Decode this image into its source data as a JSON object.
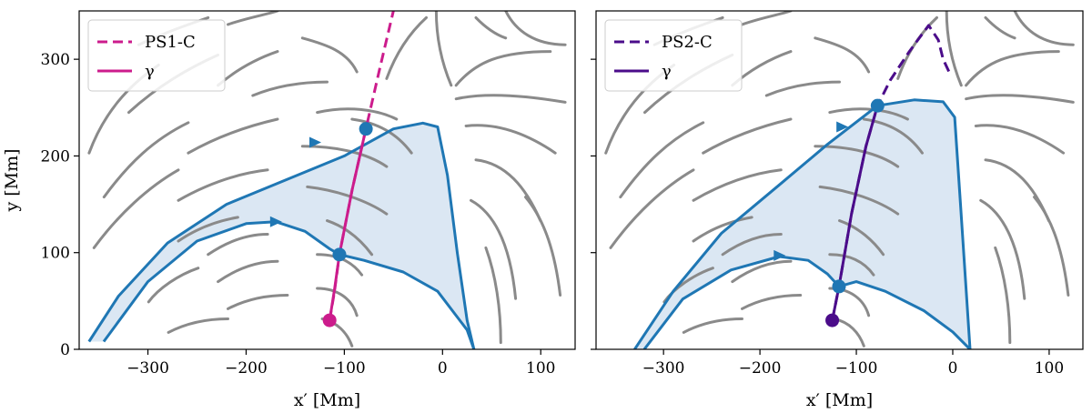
{
  "chart_data": [
    {
      "type": "line",
      "panel": "left",
      "xlabel": "x′ [Mm]",
      "ylabel": "y [Mm]",
      "xlim": [
        -370,
        135
      ],
      "ylim": [
        0,
        350
      ],
      "xticks": [
        -300,
        -200,
        -100,
        0,
        100
      ],
      "xtick_labels": [
        "−300",
        "−200",
        "−100",
        "0",
        "100"
      ],
      "yticks": [
        0,
        100,
        200,
        300
      ],
      "ytick_labels": [
        "0",
        "100",
        "200",
        "300"
      ],
      "legend": {
        "position": "top-left",
        "entries": [
          {
            "label": "PS1-C",
            "style": "dashed",
            "color": "#cc1c8c"
          },
          {
            "label": "γ",
            "style": "solid",
            "color": "#cc1c8c"
          }
        ]
      },
      "series": [
        {
          "name": "PS1-C",
          "style": "dashed",
          "color": "#cc1c8c",
          "points": [
            [
              -115,
              30
            ],
            [
              -110,
              60
            ],
            [
              -105,
              98
            ],
            [
              -92,
              165
            ],
            [
              -78,
              228
            ],
            [
              -64,
              290
            ],
            [
              -50,
              350
            ]
          ]
        },
        {
          "name": "γ",
          "style": "solid",
          "color": "#cc1c8c",
          "points": [
            [
              -115,
              30
            ],
            [
              -110,
              62
            ],
            [
              -105,
              98
            ],
            [
              -92,
              165
            ],
            [
              -78,
              228
            ]
          ]
        }
      ],
      "separatrices": [
        {
          "color": "#1f77b4",
          "points": [
            [
              -360,
              8
            ],
            [
              -330,
              55
            ],
            [
              -280,
              110
            ],
            [
              -220,
              150
            ],
            [
              -160,
              175
            ],
            [
              -100,
              200
            ],
            [
              -50,
              228
            ],
            [
              -20,
              234
            ],
            [
              -5,
              230
            ],
            [
              5,
              180
            ],
            [
              15,
              100
            ],
            [
              25,
              30
            ],
            [
              32,
              0
            ]
          ]
        },
        {
          "color": "#1f77b4",
          "points": [
            [
              -345,
              8
            ],
            [
              -300,
              70
            ],
            [
              -250,
              112
            ],
            [
              -200,
              130
            ],
            [
              -170,
              132
            ],
            [
              -140,
              122
            ],
            [
              -115,
              104
            ],
            [
              -105,
              98
            ],
            [
              -80,
              92
            ],
            [
              -40,
              80
            ],
            [
              -5,
              60
            ],
            [
              25,
              20
            ],
            [
              32,
              0
            ]
          ]
        }
      ],
      "markers": [
        {
          "x": -115,
          "y": 30,
          "color": "#cc1c8c"
        },
        {
          "x": -105,
          "y": 98,
          "color": "#1f77b4"
        },
        {
          "x": -78,
          "y": 228,
          "color": "#1f77b4"
        }
      ],
      "arrows": [
        {
          "x": -130,
          "y": 214,
          "dir": "right"
        },
        {
          "x": -170,
          "y": 132,
          "dir": "right"
        }
      ],
      "shade_color": "#dbe7f3"
    },
    {
      "type": "line",
      "panel": "right",
      "xlabel": "x′ [Mm]",
      "xlim": [
        -370,
        135
      ],
      "ylim": [
        0,
        350
      ],
      "xticks": [
        -300,
        -200,
        -100,
        0,
        100
      ],
      "xtick_labels": [
        "−300",
        "−200",
        "−100",
        "0",
        "100"
      ],
      "yticks": [
        0,
        100,
        200,
        300
      ],
      "legend": {
        "position": "top-left",
        "entries": [
          {
            "label": "PS2-C",
            "style": "dashed",
            "color": "#4b0c8a"
          },
          {
            "label": "γ",
            "style": "solid",
            "color": "#4b0c8a"
          }
        ]
      },
      "series": [
        {
          "name": "PS2-C",
          "style": "dashed",
          "color": "#4b0c8a",
          "points": [
            [
              -125,
              30
            ],
            [
              -118,
              65
            ],
            [
              -105,
              140
            ],
            [
              -90,
              210
            ],
            [
              -78,
              252
            ],
            [
              -65,
              278
            ],
            [
              -45,
              308
            ],
            [
              -25,
              335
            ],
            [
              -15,
              320
            ],
            [
              -10,
              300
            ],
            [
              -2,
              283
            ]
          ]
        },
        {
          "name": "γ",
          "style": "solid",
          "color": "#4b0c8a",
          "points": [
            [
              -125,
              30
            ],
            [
              -118,
              65
            ],
            [
              -105,
              140
            ],
            [
              -90,
              210
            ],
            [
              -78,
              252
            ]
          ]
        }
      ],
      "separatrices": [
        {
          "color": "#1f77b4",
          "points": [
            [
              -330,
              0
            ],
            [
              -290,
              60
            ],
            [
              -240,
              120
            ],
            [
              -180,
              170
            ],
            [
              -130,
              212
            ],
            [
              -78,
              252
            ],
            [
              -40,
              258
            ],
            [
              -10,
              256
            ],
            [
              2,
              240
            ],
            [
              8,
              150
            ],
            [
              14,
              60
            ],
            [
              18,
              0
            ]
          ]
        },
        {
          "color": "#1f77b4",
          "points": [
            [
              -320,
              0
            ],
            [
              -280,
              52
            ],
            [
              -230,
              82
            ],
            [
              -180,
              96
            ],
            [
              -150,
              92
            ],
            [
              -130,
              78
            ],
            [
              -118,
              65
            ],
            [
              -100,
              70
            ],
            [
              -70,
              60
            ],
            [
              -30,
              40
            ],
            [
              0,
              18
            ],
            [
              18,
              0
            ]
          ]
        }
      ],
      "markers": [
        {
          "x": -125,
          "y": 30,
          "color": "#4b0c8a"
        },
        {
          "x": -118,
          "y": 65,
          "color": "#1f77b4"
        },
        {
          "x": -78,
          "y": 252,
          "color": "#1f77b4"
        }
      ],
      "arrows": [
        {
          "x": -115,
          "y": 230,
          "dir": "right"
        },
        {
          "x": -180,
          "y": 97,
          "dir": "right"
        }
      ],
      "shade_color": "#dbe7f3"
    }
  ]
}
